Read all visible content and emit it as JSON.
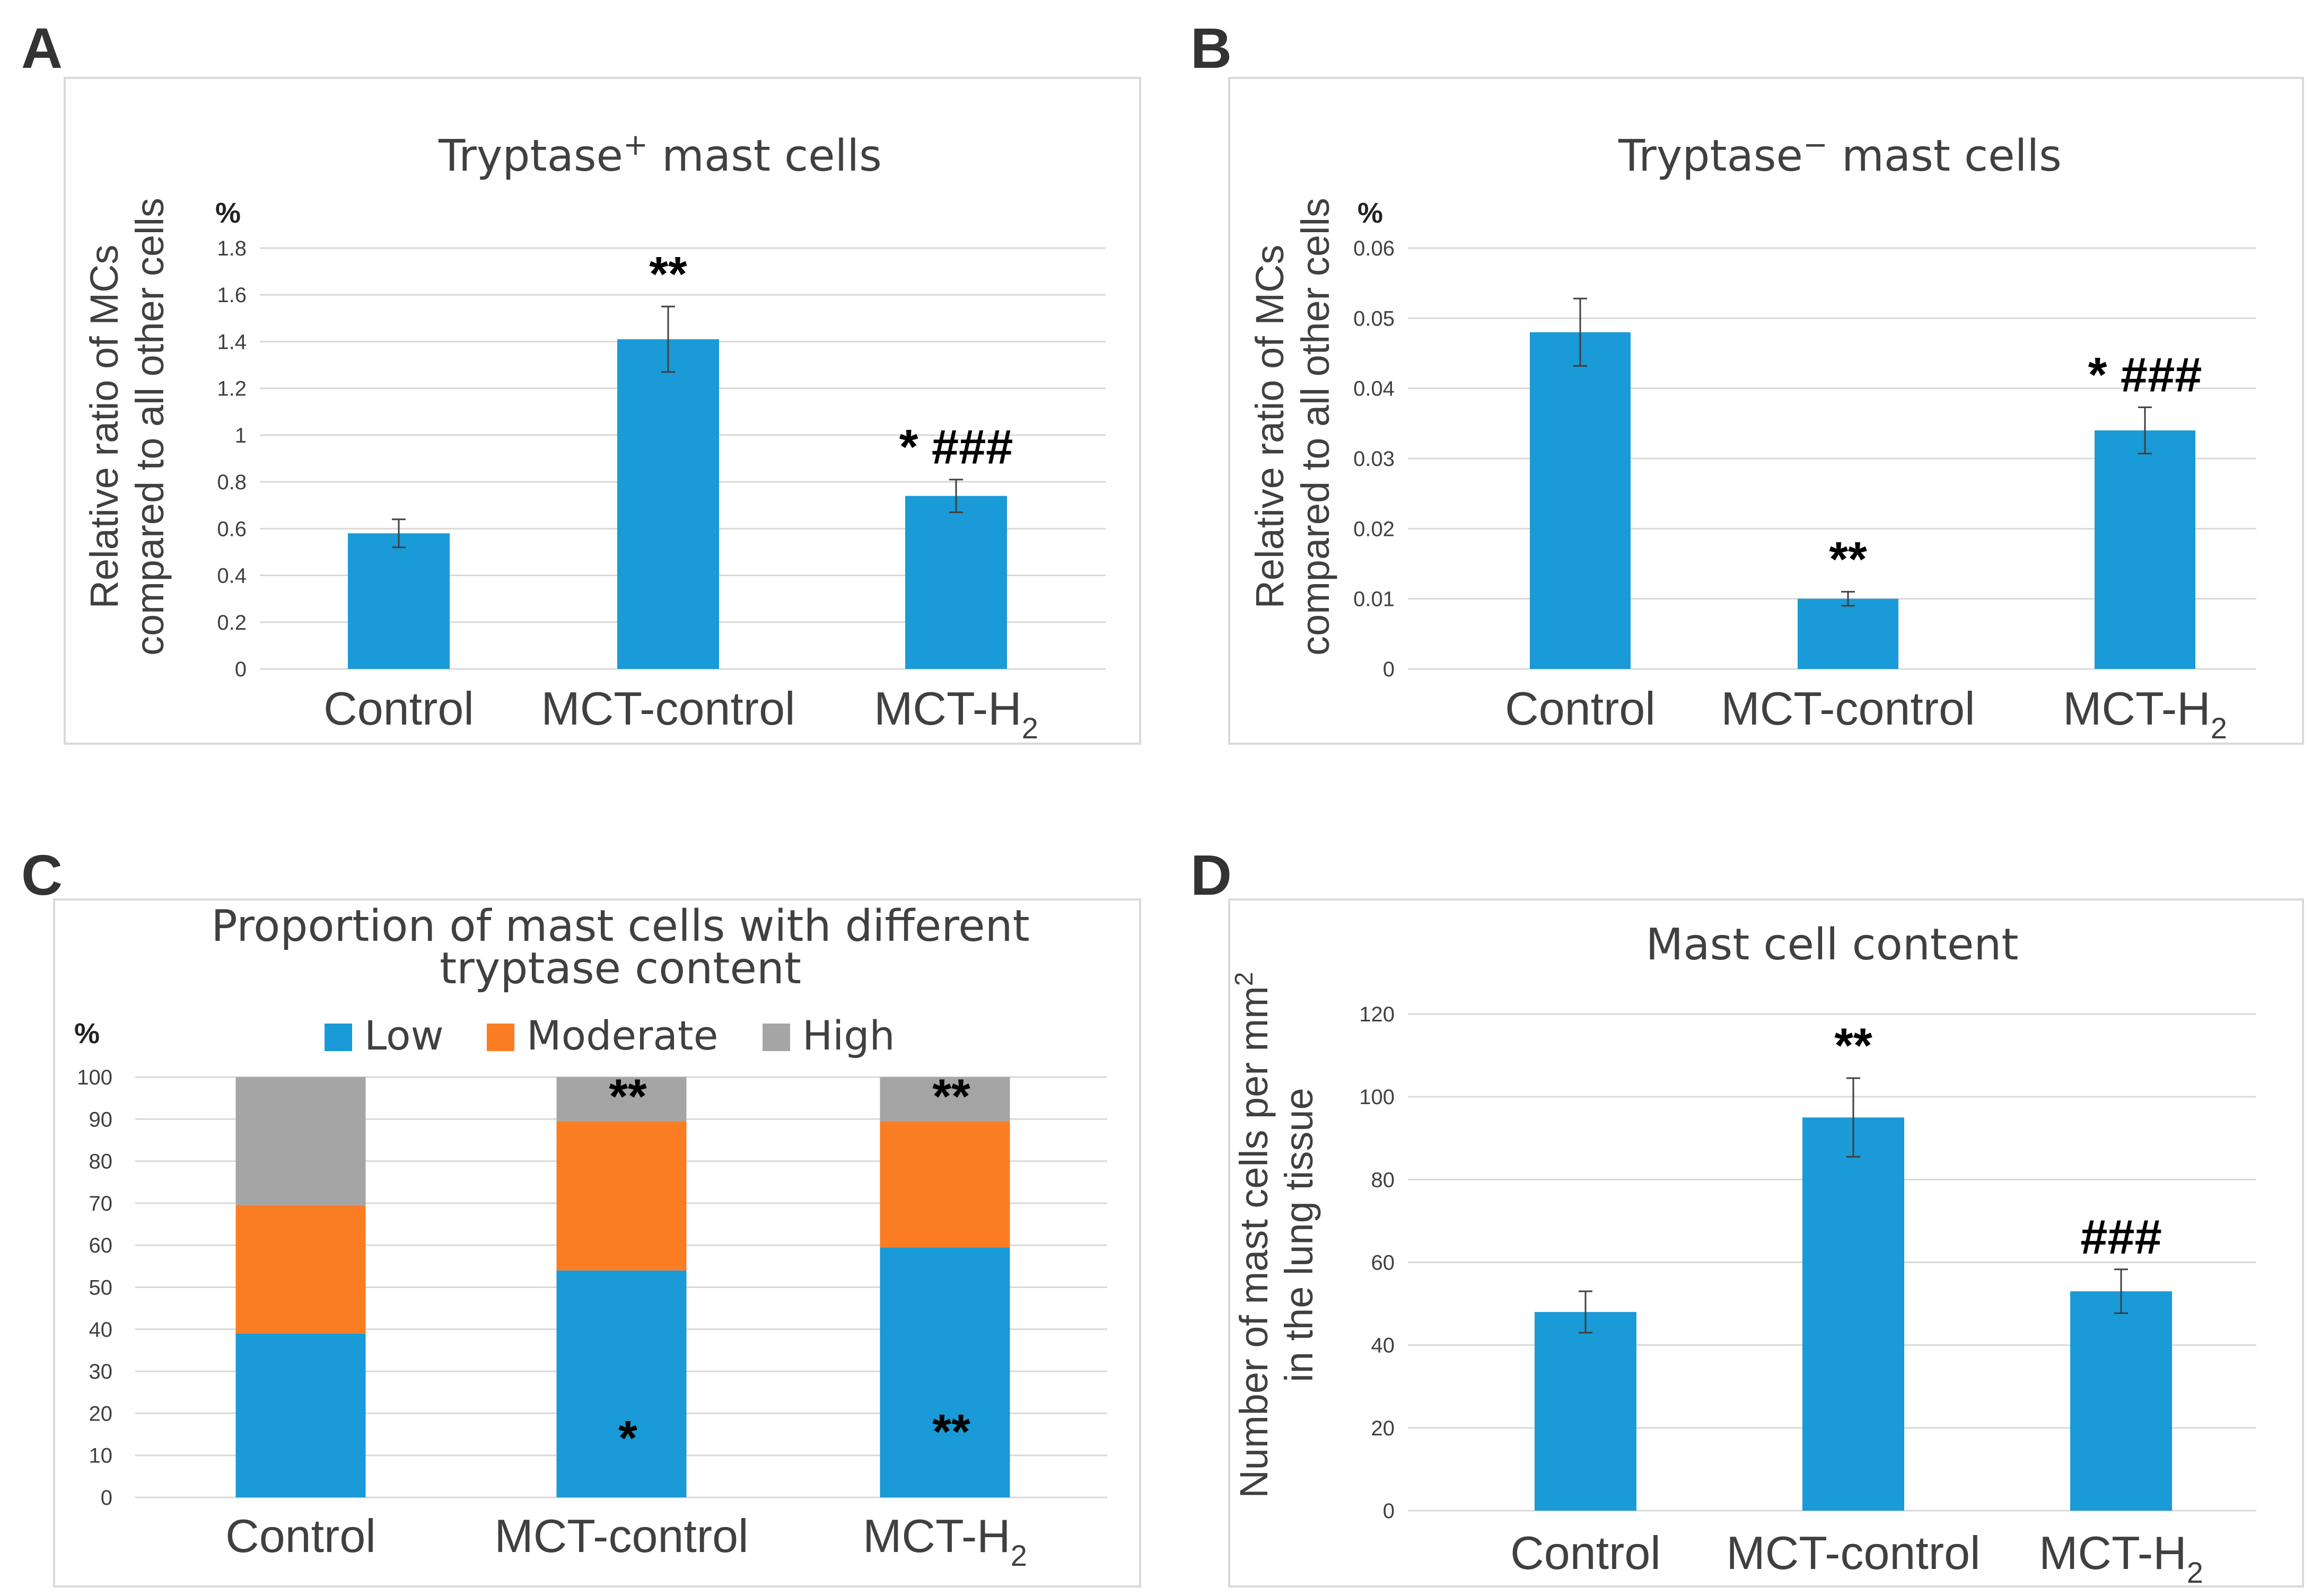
{
  "colors": {
    "low": "#1a9ad6",
    "moderate": "#fb7d23",
    "high": "#a5a5a5",
    "bar": "#1a9ad6"
  },
  "chart_data": [
    {
      "type": "bar",
      "panel": "A",
      "title_main": "Tryptase",
      "title_sup": "+",
      "title_rest": " mast cells",
      "unit": "%",
      "ylabel_line1": "Relative ratio of MCs",
      "ylabel_line2": "compared to all other cells",
      "categories": [
        "Control",
        "MCT-control",
        "MCT-H"
      ],
      "category_subscripts": [
        "",
        "",
        "2"
      ],
      "values": [
        0.58,
        1.41,
        0.74
      ],
      "errors": [
        0.06,
        0.14,
        0.07
      ],
      "annotations": [
        "",
        "**",
        "* ###"
      ],
      "ylim": [
        0,
        1.8
      ],
      "ticks": [
        "0",
        "0.2",
        "0.4",
        "0.6",
        "0.8",
        "1",
        "1.2",
        "1.4",
        "1.6",
        "1.8"
      ]
    },
    {
      "type": "bar",
      "panel": "B",
      "title_main": "Tryptase",
      "title_sup": "−",
      "title_rest": "  mast cells",
      "unit": "%",
      "ylabel_line1": "Relative ratio of MCs",
      "ylabel_line2": "compared to all other cells",
      "categories": [
        "Control",
        "MCT-control",
        "MCT-H"
      ],
      "category_subscripts": [
        "",
        "",
        "2"
      ],
      "values": [
        0.048,
        0.01,
        0.034
      ],
      "errors": [
        0.0048,
        0.001,
        0.0033
      ],
      "annotations": [
        "",
        "**",
        "* ###"
      ],
      "ylim": [
        0,
        0.06
      ],
      "ticks": [
        "0",
        "0.01",
        "0.02",
        "0.03",
        "0.04",
        "0.05",
        "0.06"
      ]
    },
    {
      "type": "stacked-bar",
      "panel": "C",
      "title_line1": "Proportion of mast cells with different",
      "title_line2": "tryptase content",
      "unit": "%",
      "categories": [
        "Control",
        "MCT-control",
        "MCT-H"
      ],
      "category_subscripts": [
        "",
        "",
        "2"
      ],
      "series": [
        {
          "name": "Low",
          "values": [
            39,
            54,
            59.5
          ],
          "annotations": [
            "",
            "*",
            "**"
          ]
        },
        {
          "name": "Moderate",
          "values": [
            30.5,
            35.5,
            30
          ],
          "annotations": [
            "",
            "",
            ""
          ]
        },
        {
          "name": "High",
          "values": [
            30.5,
            10.5,
            10.5
          ],
          "annotations": [
            "",
            "**",
            "**"
          ]
        }
      ],
      "ylim": [
        0,
        100
      ],
      "ticks": [
        "0",
        "10",
        "20",
        "30",
        "40",
        "50",
        "60",
        "70",
        "80",
        "90",
        "100"
      ]
    },
    {
      "type": "bar",
      "panel": "D",
      "title": "Mast cell content",
      "ylabel_line1": "Number of mast cells per mm",
      "ylabel_sup": "2",
      "ylabel_line2": "in the lung tissue",
      "categories": [
        "Control",
        "MCT-control",
        "MCT-H"
      ],
      "category_subscripts": [
        "",
        "",
        "2"
      ],
      "values": [
        48,
        95,
        53
      ],
      "errors": [
        5,
        9.5,
        5.3
      ],
      "annotations": [
        "",
        "**",
        "###"
      ],
      "ylim": [
        0,
        120
      ],
      "ticks": [
        "0",
        "20",
        "40",
        "60",
        "80",
        "100",
        "120"
      ]
    }
  ]
}
